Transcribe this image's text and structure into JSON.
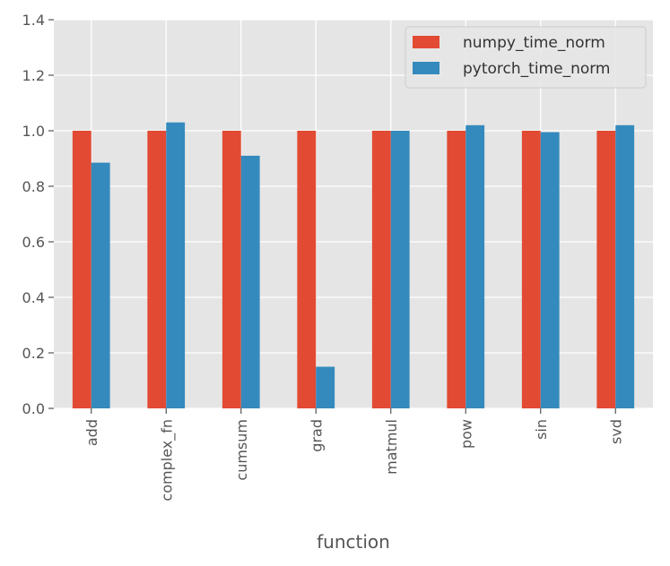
{
  "chart_data": {
    "type": "bar",
    "xlabel": "function",
    "ylabel": "",
    "categories": [
      "add",
      "complex_fn",
      "cumsum",
      "grad",
      "matmul",
      "pow",
      "sin",
      "svd"
    ],
    "series": [
      {
        "name": "numpy_time_norm",
        "color": "#E24A33",
        "values": [
          1.0,
          1.0,
          1.0,
          1.0,
          1.0,
          1.0,
          1.0,
          1.0
        ]
      },
      {
        "name": "pytorch_time_norm",
        "color": "#348ABD",
        "values": [
          0.885,
          1.03,
          0.91,
          0.15,
          1.0,
          1.02,
          0.995,
          1.02
        ]
      }
    ],
    "ylim": [
      0,
      1.4
    ],
    "yticks": [
      "0.0",
      "0.2",
      "0.4",
      "0.6",
      "0.8",
      "1.0",
      "1.2",
      "1.4"
    ],
    "grid": true,
    "legend_position": "top-right",
    "background_color": "#E5E5E5",
    "grid_color": "#FFFFFF"
  }
}
